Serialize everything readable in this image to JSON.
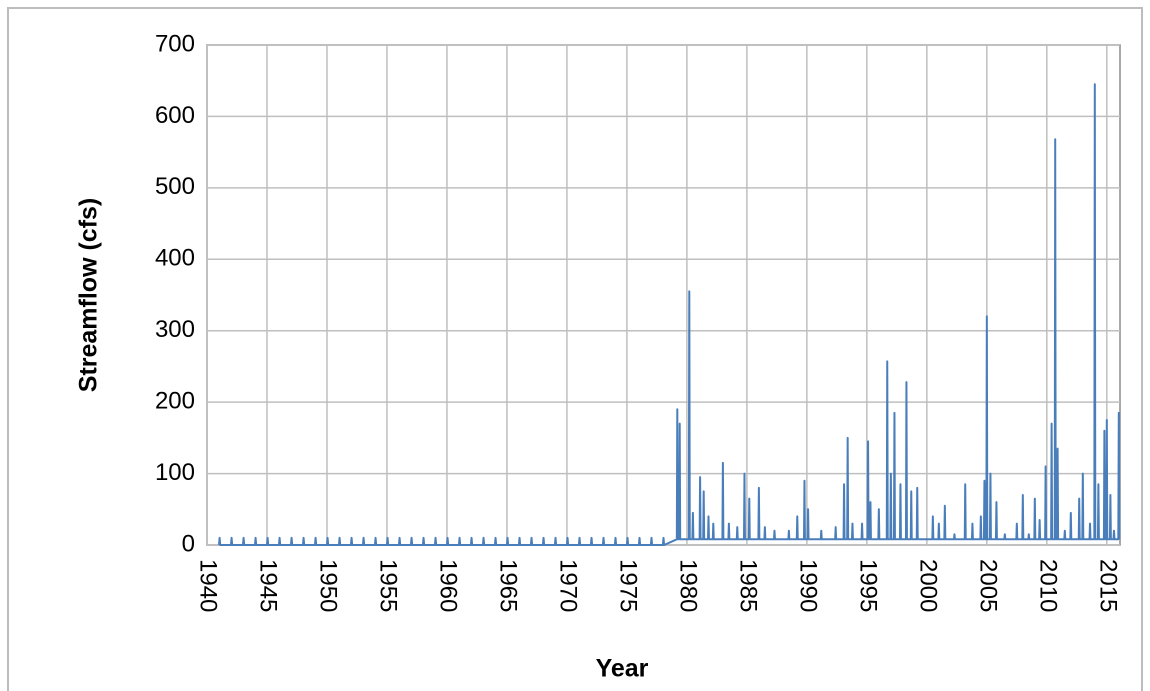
{
  "chart_data": {
    "type": "line",
    "x_label": "Year",
    "y_label": "Streamflow (cfs)",
    "color": "#4a7ebb",
    "grid": true,
    "xlim": [
      1940,
      2016.1
    ],
    "ylim": [
      0,
      700
    ],
    "xticks": [
      1940,
      1945,
      1950,
      1955,
      1960,
      1965,
      1970,
      1975,
      1980,
      1985,
      1990,
      1995,
      2000,
      2005,
      2010,
      2015
    ],
    "yticks": [
      0,
      100,
      200,
      300,
      400,
      500,
      600,
      700
    ],
    "x": [
      1941,
      1941.05,
      1941.1,
      1942,
      1942.05,
      1942.1,
      1943,
      1943.05,
      1943.1,
      1944,
      1944.05,
      1944.1,
      1945,
      1945.05,
      1945.1,
      1946,
      1946.05,
      1946.1,
      1947,
      1947.05,
      1947.1,
      1948,
      1948.05,
      1948.1,
      1949,
      1949.05,
      1949.1,
      1950,
      1950.05,
      1950.1,
      1951,
      1951.05,
      1951.1,
      1952,
      1952.05,
      1952.1,
      1953,
      1953.05,
      1953.1,
      1954,
      1954.05,
      1954.1,
      1955,
      1955.05,
      1955.1,
      1956,
      1956.05,
      1956.1,
      1957,
      1957.05,
      1957.1,
      1958,
      1958.05,
      1958.1,
      1959,
      1959.05,
      1959.1,
      1960,
      1960.05,
      1960.1,
      1961,
      1961.05,
      1961.1,
      1962,
      1962.05,
      1962.1,
      1963,
      1963.05,
      1963.1,
      1964,
      1964.05,
      1964.1,
      1965,
      1965.05,
      1965.1,
      1966,
      1966.05,
      1966.1,
      1967,
      1967.05,
      1967.1,
      1968,
      1968.05,
      1968.1,
      1969,
      1969.05,
      1969.1,
      1970,
      1970.05,
      1970.1,
      1971,
      1971.05,
      1971.1,
      1972,
      1972.05,
      1972.1,
      1973,
      1973.05,
      1973.1,
      1974,
      1974.05,
      1974.1,
      1975,
      1975.05,
      1975.1,
      1976,
      1976.05,
      1976.1,
      1977,
      1977.05,
      1977.1,
      1978,
      1978.05,
      1978.1,
      1979.16,
      1979.2,
      1979.24,
      1979.36,
      1979.4,
      1979.44,
      1980.16,
      1980.2,
      1980.24,
      1980.46,
      1980.5,
      1980.54,
      1981.06,
      1981.1,
      1981.14,
      1981.36,
      1981.4,
      1981.44,
      1981.76,
      1981.8,
      1981.84,
      1982.16,
      1982.2,
      1982.24,
      1982.96,
      1983,
      1983.04,
      1983.46,
      1983.5,
      1983.54,
      1984.16,
      1984.2,
      1984.24,
      1984.76,
      1984.8,
      1984.84,
      1985.16,
      1985.2,
      1985.24,
      1985.96,
      1986,
      1986.04,
      1986.46,
      1986.5,
      1986.54,
      1987.26,
      1987.3,
      1987.34,
      1988.46,
      1988.5,
      1988.54,
      1989.16,
      1989.2,
      1989.24,
      1989.76,
      1989.8,
      1989.84,
      1990.06,
      1990.1,
      1990.14,
      1991.16,
      1991.2,
      1991.24,
      1992.36,
      1992.4,
      1992.44,
      1993.06,
      1993.1,
      1993.14,
      1993.36,
      1993.4,
      1993.44,
      1993.76,
      1993.8,
      1993.84,
      1994.56,
      1994.6,
      1994.64,
      1995.06,
      1995.1,
      1995.14,
      1995.26,
      1995.3,
      1995.34,
      1995.96,
      1996,
      1996.04,
      1996.66,
      1996.7,
      1996.74,
      1996.96,
      1997,
      1997.04,
      1997.26,
      1997.3,
      1997.34,
      1997.76,
      1997.8,
      1997.84,
      1998.26,
      1998.3,
      1998.34,
      1998.66,
      1998.7,
      1998.74,
      1999.16,
      1999.2,
      1999.24,
      2000.46,
      2000.5,
      2000.54,
      2000.96,
      2001,
      2001.04,
      2001.46,
      2001.5,
      2001.54,
      2002.26,
      2002.3,
      2002.34,
      2003.16,
      2003.2,
      2003.24,
      2003.76,
      2003.8,
      2003.84,
      2004.46,
      2004.5,
      2004.54,
      2004.76,
      2004.8,
      2004.84,
      2004.96,
      2005,
      2005.04,
      2005.26,
      2005.3,
      2005.34,
      2005.76,
      2005.8,
      2005.84,
      2006.46,
      2006.5,
      2006.54,
      2007.46,
      2007.5,
      2007.54,
      2007.96,
      2008,
      2008.04,
      2008.46,
      2008.5,
      2008.54,
      2008.96,
      2009,
      2009.04,
      2009.36,
      2009.4,
      2009.44,
      2009.86,
      2009.9,
      2009.94,
      2010.36,
      2010.4,
      2010.44,
      2010.66,
      2010.7,
      2010.74,
      2010.86,
      2010.9,
      2010.94,
      2011.46,
      2011.5,
      2011.54,
      2011.96,
      2012,
      2012.04,
      2012.66,
      2012.7,
      2012.74,
      2012.96,
      2013,
      2013.04,
      2013.56,
      2013.6,
      2013.64,
      2013.96,
      2014,
      2014.04,
      2014.26,
      2014.3,
      2014.34,
      2014.76,
      2014.8,
      2014.84,
      2014.96,
      2015,
      2015.04,
      2015.26,
      2015.3,
      2015.34,
      2015.56,
      2015.6,
      2015.64,
      2015.96,
      2016,
      2016.04
    ],
    "values": [
      0,
      10,
      0,
      0,
      10,
      0,
      0,
      10,
      0,
      0,
      10,
      0,
      0,
      10,
      0,
      0,
      10,
      0,
      0,
      10,
      0,
      0,
      10,
      0,
      0,
      10,
      0,
      0,
      10,
      0,
      0,
      10,
      0,
      0,
      10,
      0,
      0,
      10,
      0,
      0,
      10,
      0,
      0,
      10,
      0,
      0,
      10,
      0,
      0,
      10,
      0,
      0,
      10,
      0,
      0,
      10,
      0,
      0,
      10,
      0,
      0,
      10,
      0,
      0,
      10,
      0,
      0,
      10,
      0,
      0,
      10,
      0,
      0,
      10,
      0,
      0,
      10,
      0,
      0,
      10,
      0,
      0,
      10,
      0,
      0,
      10,
      0,
      0,
      10,
      0,
      0,
      10,
      0,
      0,
      10,
      0,
      0,
      10,
      0,
      0,
      10,
      0,
      0,
      10,
      0,
      0,
      10,
      0,
      0,
      10,
      0,
      0,
      10,
      0,
      8,
      190,
      8,
      8,
      170,
      8,
      8,
      355,
      8,
      8,
      45,
      8,
      8,
      95,
      8,
      8,
      75,
      8,
      8,
      40,
      8,
      8,
      30,
      8,
      8,
      115,
      8,
      8,
      30,
      8,
      8,
      25,
      8,
      8,
      100,
      8,
      8,
      65,
      8,
      8,
      80,
      8,
      8,
      25,
      8,
      8,
      20,
      8,
      8,
      20,
      8,
      8,
      40,
      8,
      8,
      90,
      8,
      8,
      50,
      8,
      8,
      20,
      8,
      8,
      25,
      8,
      8,
      85,
      8,
      8,
      150,
      8,
      8,
      30,
      8,
      8,
      30,
      8,
      8,
      145,
      8,
      8,
      60,
      8,
      8,
      50,
      8,
      8,
      257,
      8,
      8,
      100,
      8,
      8,
      185,
      8,
      8,
      85,
      8,
      8,
      228,
      8,
      8,
      75,
      8,
      8,
      80,
      8,
      8,
      40,
      8,
      8,
      30,
      8,
      8,
      55,
      8,
      8,
      15,
      8,
      8,
      85,
      8,
      8,
      30,
      8,
      8,
      40,
      8,
      8,
      90,
      8,
      8,
      320,
      8,
      8,
      100,
      8,
      8,
      60,
      8,
      8,
      15,
      8,
      8,
      30,
      8,
      8,
      70,
      8,
      8,
      15,
      8,
      8,
      65,
      8,
      8,
      35,
      8,
      8,
      110,
      8,
      8,
      170,
      8,
      8,
      568,
      8,
      8,
      135,
      8,
      8,
      20,
      8,
      8,
      45,
      8,
      8,
      65,
      8,
      8,
      100,
      8,
      8,
      30,
      8,
      8,
      645,
      8,
      8,
      85,
      8,
      8,
      160,
      8,
      8,
      175,
      8,
      8,
      70,
      8,
      8,
      20,
      8,
      8,
      185,
      8
    ]
  }
}
